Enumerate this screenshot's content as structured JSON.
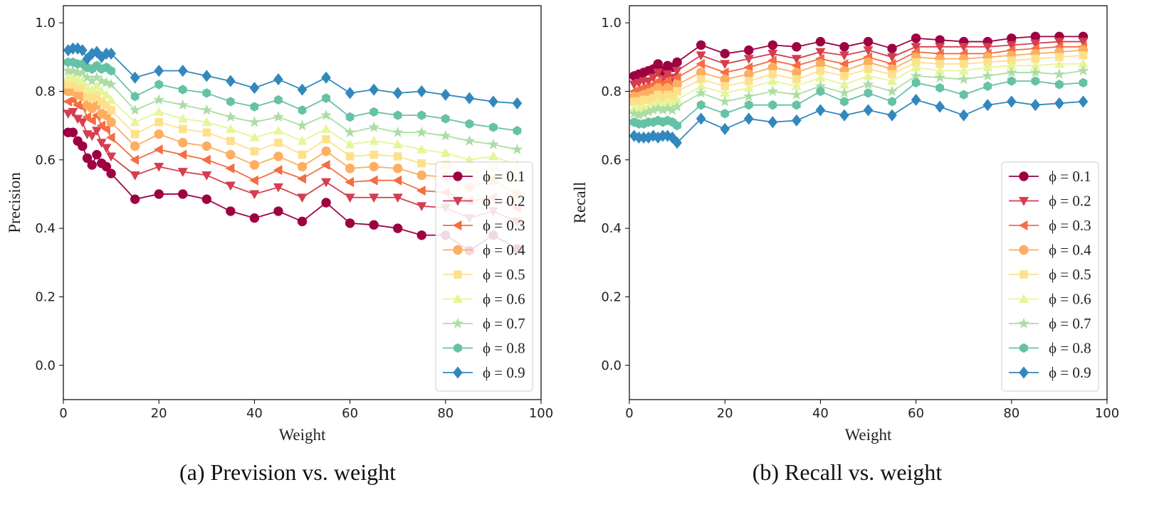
{
  "chart_data": [
    {
      "type": "line",
      "caption": "(a) Prevision vs. weight",
      "xlabel": "Weight",
      "ylabel": "Precision",
      "xlim": [
        0,
        100
      ],
      "ylim": [
        -0.1,
        1.05
      ],
      "xticks": [
        "0",
        "20",
        "40",
        "60",
        "80",
        "100"
      ],
      "yticks": [
        "0.0",
        "0.2",
        "0.4",
        "0.6",
        "0.8",
        "1.0"
      ],
      "grid": false,
      "legend_position": "lower-right",
      "x": [
        1,
        2,
        3,
        4,
        5,
        6,
        7,
        8,
        9,
        10,
        15,
        20,
        25,
        30,
        35,
        40,
        45,
        50,
        55,
        60,
        65,
        70,
        75,
        80,
        85,
        90,
        95
      ],
      "series": [
        {
          "name": "ϕ = 0.1",
          "label_value": "0.1",
          "marker": "circle",
          "color": "#9e0142",
          "values": [
            0.68,
            0.68,
            0.655,
            0.64,
            0.605,
            0.585,
            0.615,
            0.59,
            0.58,
            0.56,
            0.485,
            0.5,
            0.5,
            0.485,
            0.45,
            0.43,
            0.45,
            0.42,
            0.475,
            0.415,
            0.41,
            0.4,
            0.38,
            0.38,
            0.335,
            0.38,
            0.34
          ]
        },
        {
          "name": "ϕ = 0.2",
          "label_value": "0.2",
          "marker": "triangle-down",
          "color": "#d53e4f",
          "values": [
            0.735,
            0.74,
            0.72,
            0.71,
            0.675,
            0.67,
            0.685,
            0.65,
            0.635,
            0.61,
            0.555,
            0.58,
            0.565,
            0.555,
            0.525,
            0.5,
            0.52,
            0.49,
            0.535,
            0.49,
            0.49,
            0.49,
            0.465,
            0.46,
            0.43,
            0.45,
            0.42
          ]
        },
        {
          "name": "ϕ = 0.3",
          "label_value": "0.3",
          "marker": "triangle-left",
          "color": "#f46d43",
          "values": [
            0.77,
            0.775,
            0.76,
            0.755,
            0.725,
            0.715,
            0.73,
            0.7,
            0.69,
            0.665,
            0.6,
            0.63,
            0.615,
            0.6,
            0.575,
            0.54,
            0.57,
            0.545,
            0.585,
            0.535,
            0.54,
            0.54,
            0.51,
            0.505,
            0.48,
            0.49,
            0.46
          ]
        },
        {
          "name": "ϕ = 0.4",
          "label_value": "0.4",
          "marker": "circle",
          "color": "#fdae61",
          "values": [
            0.8,
            0.8,
            0.79,
            0.785,
            0.76,
            0.75,
            0.76,
            0.735,
            0.73,
            0.71,
            0.64,
            0.675,
            0.65,
            0.64,
            0.615,
            0.585,
            0.61,
            0.58,
            0.625,
            0.575,
            0.58,
            0.575,
            0.555,
            0.55,
            0.52,
            0.54,
            0.5
          ]
        },
        {
          "name": "ϕ = 0.5",
          "label_value": "0.5",
          "marker": "square",
          "color": "#fee08b",
          "values": [
            0.82,
            0.82,
            0.81,
            0.81,
            0.785,
            0.78,
            0.79,
            0.77,
            0.76,
            0.745,
            0.675,
            0.71,
            0.69,
            0.68,
            0.655,
            0.625,
            0.65,
            0.615,
            0.66,
            0.61,
            0.615,
            0.61,
            0.59,
            0.585,
            0.56,
            0.575,
            0.545
          ]
        },
        {
          "name": "ϕ = 0.6",
          "label_value": "0.6",
          "marker": "triangle-up",
          "color": "#e6f598",
          "values": [
            0.84,
            0.84,
            0.835,
            0.83,
            0.81,
            0.805,
            0.815,
            0.8,
            0.79,
            0.775,
            0.71,
            0.74,
            0.72,
            0.71,
            0.69,
            0.665,
            0.685,
            0.655,
            0.69,
            0.645,
            0.655,
            0.645,
            0.63,
            0.62,
            0.6,
            0.61,
            0.585
          ]
        },
        {
          "name": "ϕ = 0.7",
          "label_value": "0.7",
          "marker": "star",
          "color": "#abdda4",
          "values": [
            0.86,
            0.86,
            0.855,
            0.855,
            0.84,
            0.83,
            0.84,
            0.83,
            0.825,
            0.82,
            0.745,
            0.775,
            0.76,
            0.745,
            0.725,
            0.71,
            0.725,
            0.7,
            0.73,
            0.68,
            0.695,
            0.68,
            0.68,
            0.67,
            0.655,
            0.645,
            0.63
          ]
        },
        {
          "name": "ϕ = 0.8",
          "label_value": "0.8",
          "marker": "hexagon",
          "color": "#66c2a5",
          "values": [
            0.885,
            0.885,
            0.88,
            0.88,
            0.87,
            0.865,
            0.875,
            0.865,
            0.87,
            0.86,
            0.785,
            0.82,
            0.805,
            0.795,
            0.77,
            0.755,
            0.775,
            0.745,
            0.78,
            0.725,
            0.74,
            0.73,
            0.73,
            0.72,
            0.705,
            0.695,
            0.685
          ]
        },
        {
          "name": "ϕ = 0.9",
          "label_value": "0.9",
          "marker": "diamond",
          "color": "#3288bd",
          "values": [
            0.92,
            0.925,
            0.925,
            0.92,
            0.895,
            0.91,
            0.915,
            0.9,
            0.91,
            0.91,
            0.84,
            0.86,
            0.86,
            0.845,
            0.83,
            0.81,
            0.835,
            0.805,
            0.84,
            0.795,
            0.805,
            0.795,
            0.8,
            0.79,
            0.78,
            0.77,
            0.765
          ]
        }
      ]
    },
    {
      "type": "line",
      "caption": "(b) Recall vs. weight",
      "xlabel": "Weight",
      "ylabel": "Recall",
      "xlim": [
        0,
        100
      ],
      "ylim": [
        -0.1,
        1.05
      ],
      "xticks": [
        "0",
        "20",
        "40",
        "60",
        "80",
        "100"
      ],
      "yticks": [
        "0.0",
        "0.2",
        "0.4",
        "0.6",
        "0.8",
        "1.0"
      ],
      "grid": false,
      "legend_position": "lower-right",
      "x": [
        1,
        2,
        3,
        4,
        5,
        6,
        7,
        8,
        9,
        10,
        15,
        20,
        25,
        30,
        35,
        40,
        45,
        50,
        55,
        60,
        65,
        70,
        75,
        80,
        85,
        90,
        95
      ],
      "series": [
        {
          "name": "ϕ = 0.1",
          "label_value": "0.1",
          "marker": "circle",
          "color": "#9e0142",
          "values": [
            0.845,
            0.85,
            0.855,
            0.86,
            0.865,
            0.88,
            0.86,
            0.875,
            0.87,
            0.885,
            0.935,
            0.91,
            0.92,
            0.935,
            0.93,
            0.945,
            0.93,
            0.945,
            0.925,
            0.955,
            0.95,
            0.945,
            0.945,
            0.955,
            0.96,
            0.96,
            0.96
          ]
        },
        {
          "name": "ϕ = 0.2",
          "label_value": "0.2",
          "marker": "triangle-down",
          "color": "#d53e4f",
          "values": [
            0.82,
            0.825,
            0.83,
            0.83,
            0.84,
            0.855,
            0.835,
            0.85,
            0.84,
            0.86,
            0.905,
            0.88,
            0.895,
            0.91,
            0.895,
            0.915,
            0.905,
            0.92,
            0.9,
            0.93,
            0.93,
            0.93,
            0.93,
            0.935,
            0.94,
            0.945,
            0.945
          ]
        },
        {
          "name": "ϕ = 0.3",
          "label_value": "0.3",
          "marker": "triangle-left",
          "color": "#f46d43",
          "values": [
            0.8,
            0.805,
            0.81,
            0.81,
            0.82,
            0.83,
            0.82,
            0.83,
            0.82,
            0.84,
            0.88,
            0.855,
            0.87,
            0.89,
            0.875,
            0.895,
            0.88,
            0.9,
            0.88,
            0.915,
            0.91,
            0.91,
            0.91,
            0.92,
            0.925,
            0.93,
            0.93
          ]
        },
        {
          "name": "ϕ = 0.4",
          "label_value": "0.4",
          "marker": "circle",
          "color": "#fdae61",
          "values": [
            0.785,
            0.785,
            0.79,
            0.795,
            0.8,
            0.81,
            0.8,
            0.81,
            0.8,
            0.82,
            0.855,
            0.835,
            0.85,
            0.87,
            0.855,
            0.88,
            0.86,
            0.885,
            0.865,
            0.9,
            0.895,
            0.895,
            0.9,
            0.905,
            0.91,
            0.915,
            0.92
          ]
        },
        {
          "name": "ϕ = 0.5",
          "label_value": "0.5",
          "marker": "square",
          "color": "#fee08b",
          "values": [
            0.77,
            0.77,
            0.775,
            0.775,
            0.78,
            0.79,
            0.78,
            0.79,
            0.785,
            0.8,
            0.835,
            0.815,
            0.83,
            0.85,
            0.835,
            0.86,
            0.845,
            0.865,
            0.85,
            0.885,
            0.88,
            0.88,
            0.885,
            0.89,
            0.895,
            0.9,
            0.905
          ]
        },
        {
          "name": "ϕ = 0.6",
          "label_value": "0.6",
          "marker": "triangle-up",
          "color": "#e6f598",
          "values": [
            0.75,
            0.75,
            0.755,
            0.755,
            0.76,
            0.77,
            0.76,
            0.77,
            0.765,
            0.775,
            0.815,
            0.795,
            0.81,
            0.83,
            0.815,
            0.84,
            0.82,
            0.845,
            0.83,
            0.87,
            0.86,
            0.86,
            0.87,
            0.875,
            0.875,
            0.88,
            0.88
          ]
        },
        {
          "name": "ϕ = 0.7",
          "label_value": "0.7",
          "marker": "star",
          "color": "#abdda4",
          "values": [
            0.735,
            0.73,
            0.735,
            0.74,
            0.745,
            0.75,
            0.745,
            0.75,
            0.745,
            0.755,
            0.795,
            0.77,
            0.785,
            0.8,
            0.79,
            0.815,
            0.795,
            0.82,
            0.8,
            0.845,
            0.84,
            0.835,
            0.845,
            0.855,
            0.855,
            0.85,
            0.86
          ]
        },
        {
          "name": "ϕ = 0.8",
          "label_value": "0.8",
          "marker": "hexagon",
          "color": "#66c2a5",
          "values": [
            0.71,
            0.705,
            0.705,
            0.71,
            0.71,
            0.715,
            0.71,
            0.715,
            0.71,
            0.7,
            0.76,
            0.735,
            0.76,
            0.76,
            0.76,
            0.8,
            0.77,
            0.795,
            0.77,
            0.825,
            0.81,
            0.79,
            0.815,
            0.83,
            0.83,
            0.82,
            0.825
          ]
        },
        {
          "name": "ϕ = 0.9",
          "label_value": "0.9",
          "marker": "diamond",
          "color": "#3288bd",
          "values": [
            0.67,
            0.665,
            0.665,
            0.665,
            0.67,
            0.665,
            0.67,
            0.67,
            0.665,
            0.65,
            0.72,
            0.69,
            0.72,
            0.71,
            0.715,
            0.745,
            0.73,
            0.745,
            0.73,
            0.775,
            0.755,
            0.73,
            0.76,
            0.77,
            0.76,
            0.765,
            0.77
          ]
        }
      ]
    }
  ]
}
